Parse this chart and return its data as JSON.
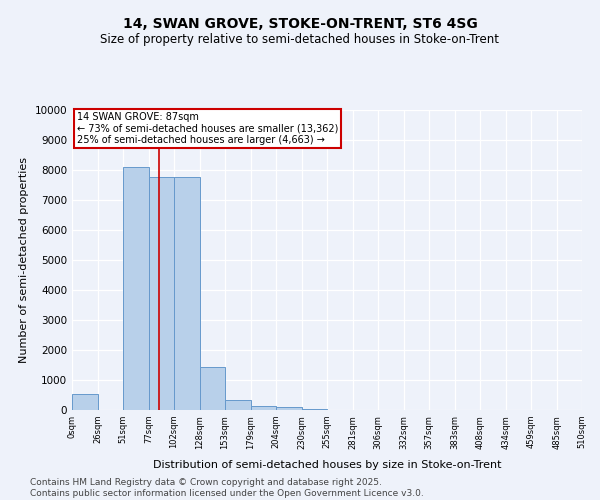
{
  "title": "14, SWAN GROVE, STOKE-ON-TRENT, ST6 4SG",
  "subtitle": "Size of property relative to semi-detached houses in Stoke-on-Trent",
  "xlabel": "Distribution of semi-detached houses by size in Stoke-on-Trent",
  "ylabel": "Number of semi-detached properties",
  "bin_labels": [
    "0sqm",
    "26sqm",
    "51sqm",
    "77sqm",
    "102sqm",
    "128sqm",
    "153sqm",
    "179sqm",
    "204sqm",
    "230sqm",
    "255sqm",
    "281sqm",
    "306sqm",
    "332sqm",
    "357sqm",
    "383sqm",
    "408sqm",
    "434sqm",
    "459sqm",
    "485sqm",
    "510sqm"
  ],
  "bin_edges": [
    0,
    26,
    51,
    77,
    102,
    128,
    153,
    179,
    204,
    230,
    255,
    281,
    306,
    332,
    357,
    383,
    408,
    434,
    459,
    485,
    510
  ],
  "bar_heights": [
    550,
    0,
    8100,
    7750,
    7750,
    1450,
    330,
    150,
    100,
    50,
    15,
    5,
    2,
    1,
    0,
    0,
    0,
    0,
    0,
    0
  ],
  "bar_color": "#b8d0ea",
  "bar_edge_color": "#6699cc",
  "property_size": 87,
  "vline_color": "#cc0000",
  "annotation_text_line1": "14 SWAN GROVE: 87sqm",
  "annotation_text_line2": "← 73% of semi-detached houses are smaller (13,362)",
  "annotation_text_line3": "25% of semi-detached houses are larger (4,663) →",
  "annotation_box_color": "white",
  "annotation_box_edge": "#cc0000",
  "ylim": [
    0,
    10000
  ],
  "yticks": [
    0,
    1000,
    2000,
    3000,
    4000,
    5000,
    6000,
    7000,
    8000,
    9000,
    10000
  ],
  "background_color": "#eef2fa",
  "grid_color": "#ffffff",
  "footer_line1": "Contains HM Land Registry data © Crown copyright and database right 2025.",
  "footer_line2": "Contains public sector information licensed under the Open Government Licence v3.0.",
  "title_fontsize": 10,
  "subtitle_fontsize": 8.5,
  "ylabel_fontsize": 8,
  "xlabel_fontsize": 8,
  "footer_fontsize": 6.5
}
